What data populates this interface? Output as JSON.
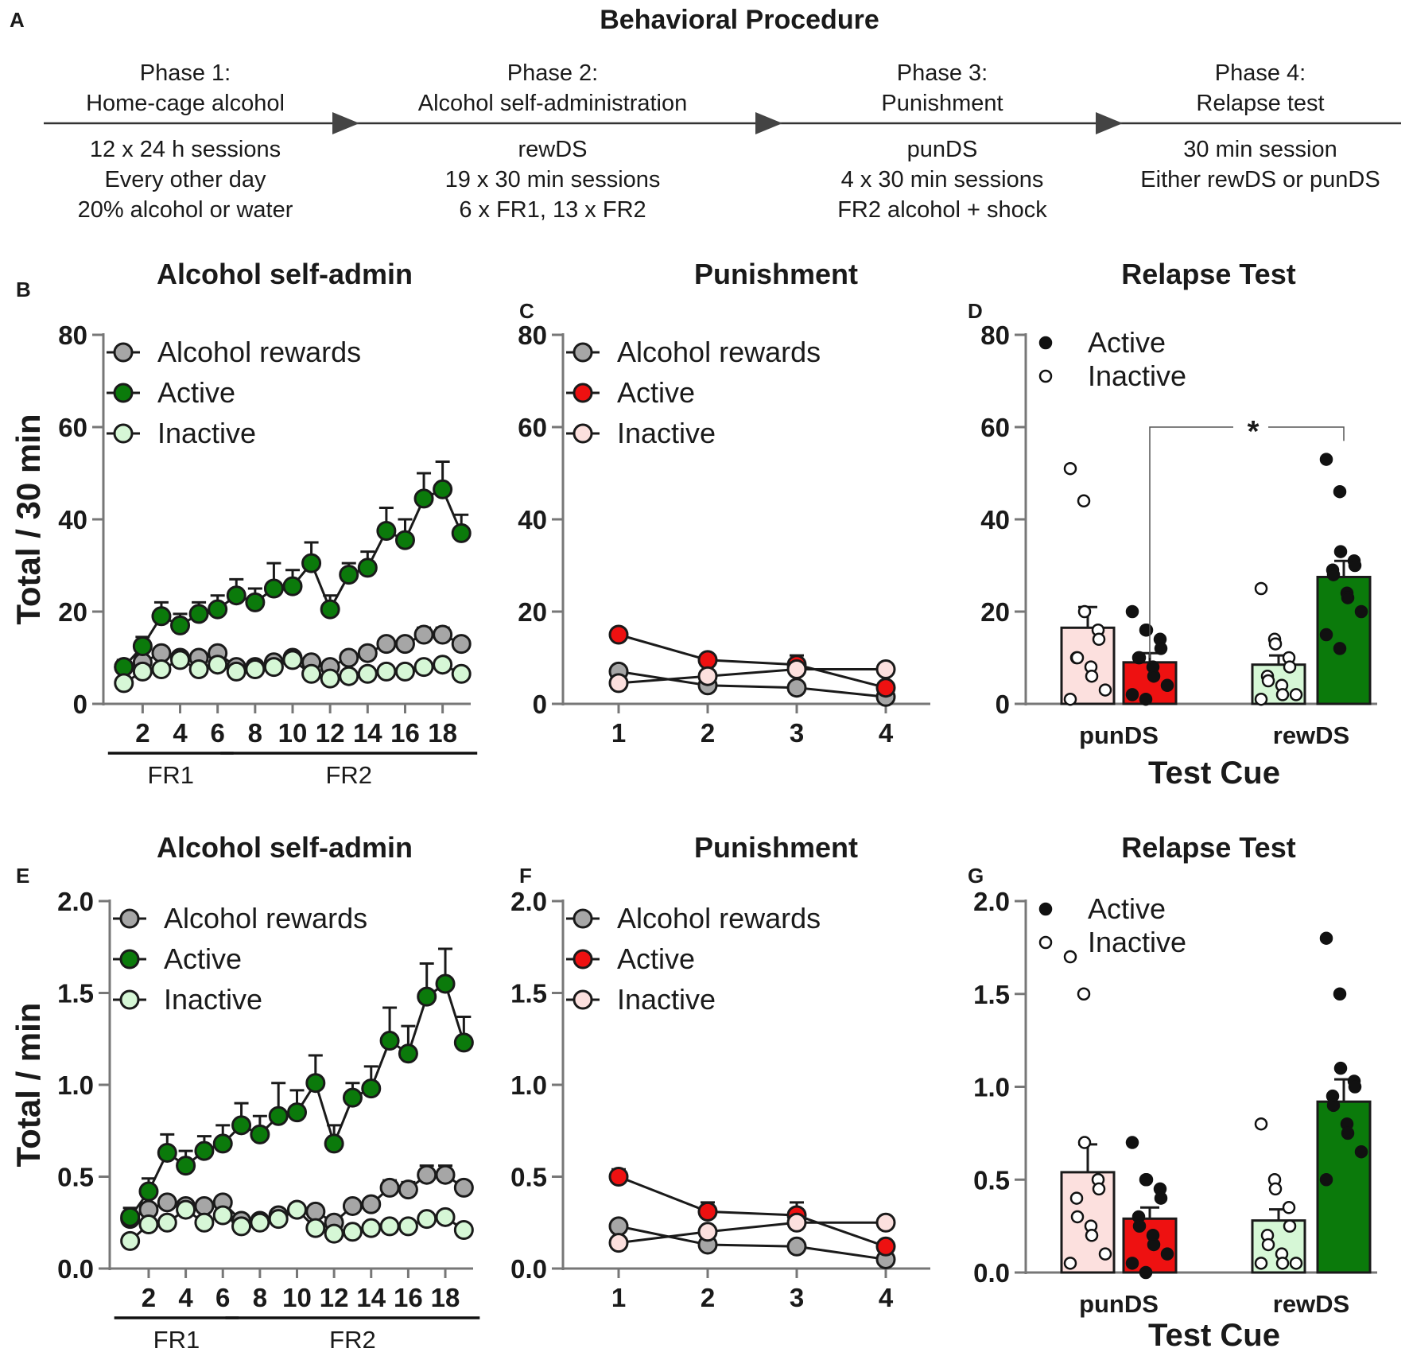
{
  "header": {
    "label": "A",
    "title": "Behavioral Procedure",
    "phases": [
      {
        "title1": "Phase 1:",
        "title2": "Home-cage alcohol",
        "d1": "12 x 24 h sessions",
        "d2": "Every other day",
        "d3": "20% alcohol or water"
      },
      {
        "title1": "Phase 2:",
        "title2": "Alcohol self-administration",
        "d1": "rewDS",
        "d2": "19 x 30 min sessions",
        "d3": "6 x FR1, 13 x FR2"
      },
      {
        "title1": "Phase 3:",
        "title2": "Punishment",
        "d1": "punDS",
        "d2": "4 x 30 min sessions",
        "d3": "FR2 alcohol + shock"
      },
      {
        "title1": "Phase 4:",
        "title2": "Relapse test",
        "d1": "30 min session",
        "d2": "Either rewDS or punDS",
        "d3": ""
      }
    ]
  },
  "colors": {
    "gray": "#a6a6a6",
    "green_dark": "#0b7a0b",
    "green_light": "#d6f7d6",
    "red": "#ee1111",
    "pink": "#fce0de",
    "axis": "#777777",
    "line": "#1a1a1a"
  },
  "chart_data": [
    {
      "id": "B",
      "label": "B",
      "type": "line",
      "title": "Alcohol self-admin",
      "ylabel": "Total / 30 min",
      "ylim": [
        0,
        80
      ],
      "yticks": [
        "0",
        "20",
        "40",
        "60",
        "80"
      ],
      "xlim": [
        0.5,
        19.5
      ],
      "xticks": [
        "2",
        "4",
        "6",
        "8",
        "10",
        "12",
        "14",
        "16",
        "18"
      ],
      "groups": [
        {
          "label": "FR1",
          "from": 1,
          "to": 6
        },
        {
          "label": "FR2",
          "from": 7,
          "to": 19
        }
      ],
      "legend": [
        "Alcohol rewards",
        "Active",
        "Inactive"
      ],
      "x": [
        1,
        2,
        3,
        4,
        5,
        6,
        7,
        8,
        9,
        10,
        11,
        12,
        13,
        14,
        15,
        16,
        17,
        18,
        19
      ],
      "series": [
        {
          "name": "Alcohol rewards",
          "values": [
            8,
            9,
            11,
            10,
            10,
            11,
            8,
            8,
            9,
            10,
            9,
            8,
            10,
            11,
            13,
            13,
            15,
            15,
            13
          ],
          "err": [
            1,
            1,
            1,
            1,
            1,
            1,
            1,
            1,
            1,
            1,
            1,
            1,
            1,
            1,
            1,
            1,
            1.5,
            1.5,
            1
          ]
        },
        {
          "name": "Active",
          "values": [
            8,
            12.5,
            19,
            17,
            19.5,
            20.5,
            23.5,
            22,
            25,
            25.5,
            30.5,
            20.5,
            28,
            29.5,
            37.5,
            35.5,
            44.5,
            46.5,
            37
          ],
          "err": [
            1.5,
            2,
            3,
            2.5,
            2.5,
            3,
            3.5,
            3,
            5.5,
            3.5,
            4.5,
            3,
            2.5,
            3.5,
            5,
            4.5,
            5.5,
            6,
            4
          ]
        },
        {
          "name": "Inactive",
          "values": [
            4.5,
            7,
            7.5,
            9.5,
            7.5,
            8.5,
            7,
            7.5,
            8,
            9.5,
            6.5,
            5.5,
            6,
            6.5,
            7,
            7,
            8,
            8.5,
            6.5
          ],
          "err": [
            1,
            1,
            1,
            1,
            1,
            1,
            1,
            1,
            1,
            1,
            1,
            1,
            1,
            1,
            1,
            1,
            1,
            1,
            1
          ]
        }
      ]
    },
    {
      "id": "C",
      "label": "C",
      "type": "line",
      "title": "Punishment",
      "ylabel": "",
      "ylim": [
        0,
        80
      ],
      "yticks": [
        "0",
        "20",
        "40",
        "60",
        "80"
      ],
      "xlim": [
        0.5,
        4.5
      ],
      "xticks": [
        "1",
        "2",
        "3",
        "4"
      ],
      "legend": [
        "Alcohol rewards",
        "Active",
        "Inactive"
      ],
      "x": [
        1,
        2,
        3,
        4
      ],
      "series": [
        {
          "name": "Alcohol rewards",
          "values": [
            7,
            4,
            3.5,
            1.5
          ]
        },
        {
          "name": "Active",
          "values": [
            15,
            9.5,
            8.5,
            3.5
          ],
          "err": [
            1,
            1,
            2,
            1
          ]
        },
        {
          "name": "Inactive",
          "values": [
            4.5,
            6,
            7.5,
            7.5
          ]
        }
      ]
    },
    {
      "id": "D",
      "label": "D",
      "type": "bar",
      "title": "Relapse Test",
      "xlabel": "Test Cue",
      "categories": [
        "punDS",
        "rewDS"
      ],
      "ylim": [
        0,
        80
      ],
      "yticks": [
        "0",
        "20",
        "40",
        "60",
        "80"
      ],
      "legend": [
        "Active",
        "Inactive"
      ],
      "bars": [
        {
          "category": "punDS",
          "type": "Inactive",
          "mean": 16.5,
          "sem": 4.5,
          "points": [
            51,
            44,
            20,
            16,
            14,
            10,
            10,
            8,
            6,
            3,
            1
          ]
        },
        {
          "category": "punDS",
          "type": "Active",
          "mean": 9,
          "sem": 2,
          "points": [
            20,
            16,
            16,
            14,
            12,
            10,
            10,
            8,
            6,
            4,
            2,
            1
          ]
        },
        {
          "category": "rewDS",
          "type": "Inactive",
          "mean": 8.5,
          "sem": 2,
          "points": [
            25,
            14,
            13,
            10,
            8,
            6,
            5,
            4,
            2,
            2,
            1
          ]
        },
        {
          "category": "rewDS",
          "type": "Active",
          "mean": 27.5,
          "sem": 3.5,
          "points": [
            53,
            46,
            33,
            31,
            30,
            29,
            28,
            24,
            23,
            20,
            15,
            12
          ]
        }
      ],
      "significance": "*"
    },
    {
      "id": "E",
      "label": "E",
      "type": "line",
      "title": "Alcohol self-admin",
      "ylabel": "Total / min",
      "ylim": [
        0,
        2
      ],
      "yticks": [
        "0.0",
        "0.5",
        "1.0",
        "1.5",
        "2.0"
      ],
      "xlim": [
        0.5,
        19.5
      ],
      "xticks": [
        "2",
        "4",
        "6",
        "8",
        "10",
        "12",
        "14",
        "16",
        "18"
      ],
      "groups": [
        {
          "label": "FR1",
          "from": 1,
          "to": 6
        },
        {
          "label": "FR2",
          "from": 7,
          "to": 19
        }
      ],
      "legend": [
        "Alcohol rewards",
        "Active",
        "Inactive"
      ],
      "x": [
        1,
        2,
        3,
        4,
        5,
        6,
        7,
        8,
        9,
        10,
        11,
        12,
        13,
        14,
        15,
        16,
        17,
        18,
        19
      ],
      "series": [
        {
          "name": "Alcohol rewards",
          "values": [
            0.27,
            0.32,
            0.36,
            0.34,
            0.34,
            0.36,
            0.26,
            0.26,
            0.29,
            0.32,
            0.31,
            0.25,
            0.34,
            0.35,
            0.44,
            0.43,
            0.51,
            0.51,
            0.44
          ],
          "err": [
            0.03,
            0.03,
            0.03,
            0.03,
            0.03,
            0.03,
            0.03,
            0.03,
            0.03,
            0.03,
            0.03,
            0.03,
            0.03,
            0.03,
            0.04,
            0.04,
            0.05,
            0.05,
            0.03
          ]
        },
        {
          "name": "Active",
          "values": [
            0.28,
            0.42,
            0.63,
            0.56,
            0.64,
            0.68,
            0.78,
            0.73,
            0.83,
            0.85,
            1.01,
            0.68,
            0.93,
            0.98,
            1.24,
            1.17,
            1.48,
            1.55,
            1.23
          ],
          "err": [
            0.05,
            0.07,
            0.1,
            0.08,
            0.08,
            0.1,
            0.12,
            0.1,
            0.18,
            0.12,
            0.15,
            0.1,
            0.08,
            0.12,
            0.18,
            0.15,
            0.18,
            0.19,
            0.14
          ]
        },
        {
          "name": "Inactive",
          "values": [
            0.15,
            0.24,
            0.25,
            0.32,
            0.25,
            0.29,
            0.23,
            0.25,
            0.27,
            0.32,
            0.22,
            0.19,
            0.2,
            0.22,
            0.23,
            0.23,
            0.27,
            0.28,
            0.21
          ],
          "err": [
            0.03,
            0.03,
            0.03,
            0.03,
            0.03,
            0.03,
            0.03,
            0.03,
            0.03,
            0.03,
            0.03,
            0.03,
            0.03,
            0.03,
            0.03,
            0.03,
            0.03,
            0.03,
            0.03
          ]
        }
      ]
    },
    {
      "id": "F",
      "label": "F",
      "type": "line",
      "title": "Punishment",
      "ylabel": "",
      "ylim": [
        0,
        2
      ],
      "yticks": [
        "0.0",
        "0.5",
        "1.0",
        "1.5",
        "2.0"
      ],
      "xlim": [
        0.5,
        4.5
      ],
      "xticks": [
        "1",
        "2",
        "3",
        "4"
      ],
      "legend": [
        "Alcohol rewards",
        "Active",
        "Inactive"
      ],
      "x": [
        1,
        2,
        3,
        4
      ],
      "series": [
        {
          "name": "Alcohol rewards",
          "values": [
            0.23,
            0.13,
            0.12,
            0.05
          ]
        },
        {
          "name": "Active",
          "values": [
            0.5,
            0.31,
            0.29,
            0.12
          ],
          "err": [
            0.04,
            0.05,
            0.07,
            0.03
          ]
        },
        {
          "name": "Inactive",
          "values": [
            0.14,
            0.2,
            0.25,
            0.25
          ]
        }
      ]
    },
    {
      "id": "G",
      "label": "G",
      "type": "bar",
      "title": "Relapse Test",
      "xlabel": "Test Cue",
      "categories": [
        "punDS",
        "rewDS"
      ],
      "ylim": [
        0,
        2
      ],
      "yticks": [
        "0.0",
        "0.5",
        "1.0",
        "1.5",
        "2.0"
      ],
      "legend": [
        "Active",
        "Inactive"
      ],
      "bars": [
        {
          "category": "punDS",
          "type": "Inactive",
          "mean": 0.54,
          "sem": 0.15,
          "points": [
            1.7,
            1.5,
            0.7,
            0.5,
            0.45,
            0.4,
            0.3,
            0.25,
            0.2,
            0.1,
            0.05
          ]
        },
        {
          "category": "punDS",
          "type": "Active",
          "mean": 0.29,
          "sem": 0.06,
          "points": [
            0.7,
            0.5,
            0.5,
            0.45,
            0.4,
            0.3,
            0.25,
            0.2,
            0.15,
            0.1,
            0.05,
            0
          ]
        },
        {
          "category": "rewDS",
          "type": "Inactive",
          "mean": 0.28,
          "sem": 0.06,
          "points": [
            0.8,
            0.5,
            0.45,
            0.35,
            0.25,
            0.2,
            0.15,
            0.1,
            0.05,
            0.05,
            0.05
          ]
        },
        {
          "category": "rewDS",
          "type": "Active",
          "mean": 0.92,
          "sem": 0.12,
          "points": [
            1.8,
            1.5,
            1.1,
            1.03,
            1,
            0.95,
            0.9,
            0.8,
            0.75,
            0.65,
            0.5
          ]
        }
      ]
    }
  ]
}
